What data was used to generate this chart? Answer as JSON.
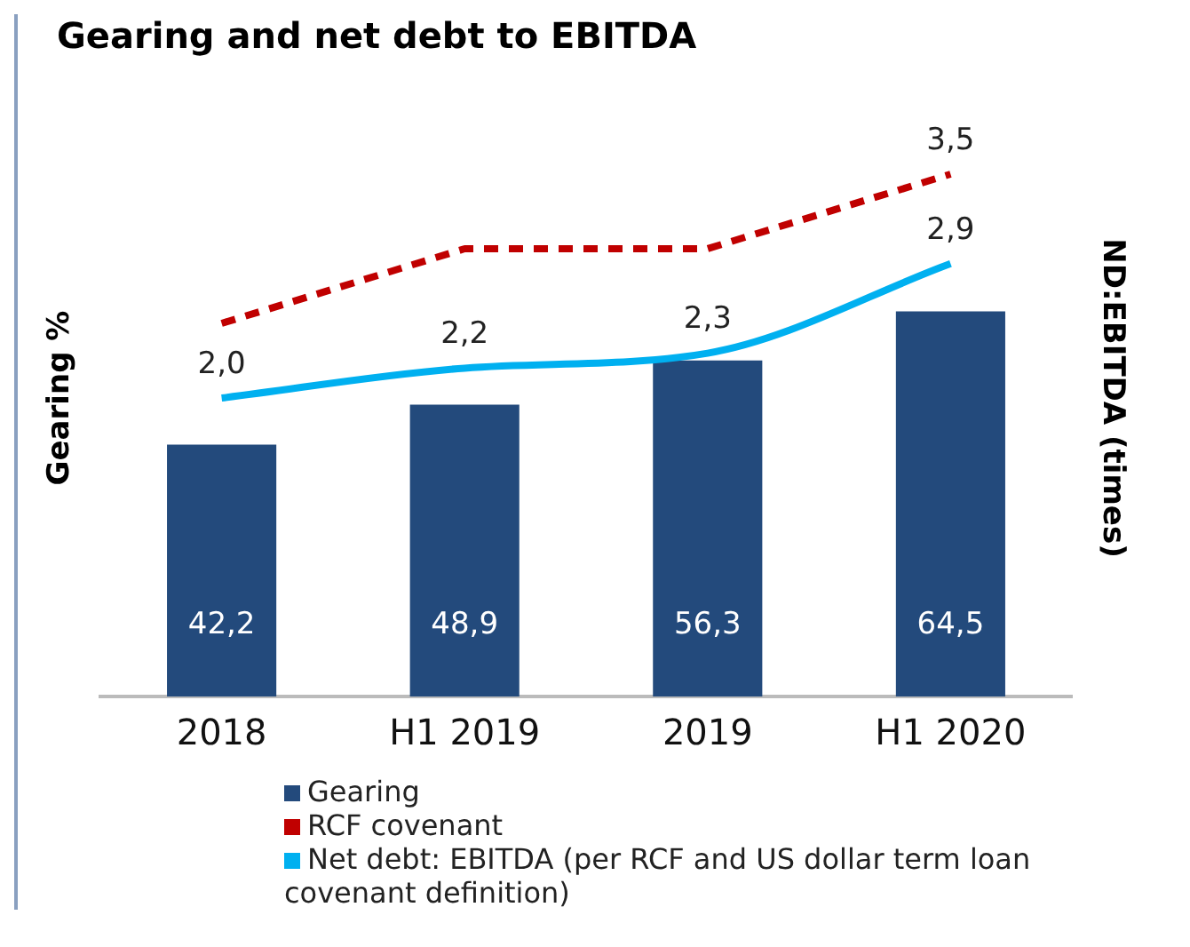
{
  "chart_data": {
    "type": "bar",
    "title": "Gearing and net debt to EBITDA",
    "ylabel": "Gearing %",
    "y2label": "ND:EBITDA (times)",
    "categories": [
      "2018",
      "H1 2019",
      "2019",
      "H1 2020"
    ],
    "series": [
      {
        "name": "Gearing",
        "color": "#234a7c",
        "values": [
          42.2,
          48.9,
          56.3,
          64.5
        ],
        "value_labels": [
          "42,2",
          "48,9",
          "56,3",
          "64,5"
        ]
      },
      {
        "name": "RCF covenant",
        "type": "line",
        "axis": "y2",
        "color": "#c00000",
        "line_style": "dashed",
        "values": [
          2.5,
          3.0,
          3.0,
          3.5
        ],
        "value_labels": [
          null,
          null,
          null,
          "3,5"
        ]
      },
      {
        "name": "Net debt: EBITDA (per RCF and US dollar term loan covenant definition)",
        "type": "line",
        "axis": "y2",
        "color": "#00b0f0",
        "line_style": "solid",
        "values": [
          2.0,
          2.2,
          2.3,
          2.9
        ],
        "value_labels": [
          "2,0",
          "2,2",
          "2,3",
          "2,9"
        ]
      }
    ],
    "tick_labels": "x",
    "grid": false,
    "legend": "bottom",
    "marker": "none"
  }
}
